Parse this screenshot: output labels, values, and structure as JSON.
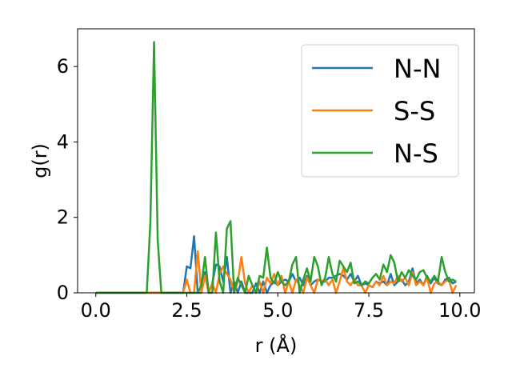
{
  "chart_data": {
    "type": "line",
    "xlabel": "r (Å)",
    "ylabel": "g(r)",
    "xlim": [
      -0.5,
      10.4
    ],
    "ylim": [
      0,
      7
    ],
    "xticks": [
      0.0,
      2.5,
      5.0,
      7.5,
      10.0
    ],
    "xtick_labels": [
      "0.0",
      "2.5",
      "5.0",
      "7.5",
      "10.0"
    ],
    "yticks": [
      0,
      2,
      4,
      6
    ],
    "ytick_labels": [
      "0",
      "2",
      "4",
      "6"
    ],
    "grid": false,
    "legend_position": "top-right",
    "series": [
      {
        "name": "N-N",
        "color": "#1f77b4",
        "x": [
          0.0,
          1.5,
          2.0,
          2.4,
          2.5,
          2.6,
          2.7,
          2.8,
          2.9,
          3.0,
          3.1,
          3.2,
          3.3,
          3.4,
          3.5,
          3.6,
          3.7,
          3.8,
          3.9,
          4.0,
          4.1,
          4.2,
          4.3,
          4.4,
          4.5,
          4.6,
          4.7,
          4.8,
          4.9,
          5.0,
          5.1,
          5.2,
          5.3,
          5.4,
          5.5,
          5.6,
          5.7,
          5.8,
          5.9,
          6.0,
          6.1,
          6.2,
          6.3,
          6.4,
          6.5,
          6.6,
          6.7,
          6.8,
          6.9,
          7.0,
          7.1,
          7.2,
          7.3,
          7.4,
          7.5,
          7.6,
          7.7,
          7.8,
          7.9,
          8.0,
          8.1,
          8.2,
          8.3,
          8.4,
          8.5,
          8.6,
          8.7,
          8.8,
          8.9,
          9.0,
          9.1,
          9.2,
          9.3,
          9.4,
          9.5,
          9.6,
          9.7,
          9.8,
          9.9
        ],
        "y": [
          0.0,
          0.0,
          0.0,
          0.0,
          0.7,
          0.65,
          1.5,
          0.0,
          0.0,
          0.55,
          0.0,
          0.25,
          0.75,
          0.7,
          0.3,
          0.95,
          0.0,
          0.3,
          0.0,
          0.3,
          0.0,
          0.0,
          0.0,
          0.25,
          0.0,
          0.3,
          0.0,
          0.2,
          0.3,
          0.2,
          0.3,
          0.35,
          0.3,
          0.5,
          0.3,
          0.4,
          0.2,
          0.45,
          0.2,
          0.3,
          0.35,
          0.3,
          0.3,
          0.4,
          0.4,
          0.45,
          0.5,
          0.45,
          0.35,
          0.5,
          0.3,
          0.45,
          0.2,
          0.25,
          0.2,
          0.15,
          0.3,
          0.25,
          0.3,
          0.2,
          0.5,
          0.2,
          0.3,
          0.35,
          0.2,
          0.3,
          0.65,
          0.25,
          0.35,
          0.2,
          0.45,
          0.25,
          0.4,
          0.25,
          0.2,
          0.35,
          0.4,
          0.25,
          0.3
        ]
      },
      {
        "name": "S-S",
        "color": "#ff7f0e",
        "x": [
          0.0,
          1.5,
          2.0,
          2.4,
          2.5,
          2.6,
          2.7,
          2.8,
          2.9,
          3.0,
          3.1,
          3.2,
          3.3,
          3.4,
          3.5,
          3.6,
          3.7,
          3.8,
          3.9,
          4.0,
          4.1,
          4.2,
          4.3,
          4.4,
          4.5,
          4.6,
          4.7,
          4.8,
          4.9,
          5.0,
          5.1,
          5.2,
          5.3,
          5.4,
          5.5,
          5.6,
          5.7,
          5.8,
          5.9,
          6.0,
          6.1,
          6.2,
          6.3,
          6.4,
          6.5,
          6.6,
          6.7,
          6.8,
          6.9,
          7.0,
          7.1,
          7.2,
          7.3,
          7.4,
          7.5,
          7.6,
          7.7,
          7.8,
          7.9,
          8.0,
          8.1,
          8.2,
          8.3,
          8.4,
          8.5,
          8.6,
          8.7,
          8.8,
          8.9,
          9.0,
          9.1,
          9.2,
          9.3,
          9.4,
          9.5,
          9.6,
          9.7,
          9.8,
          9.9
        ],
        "y": [
          0.0,
          0.0,
          0.0,
          0.0,
          0.35,
          0.0,
          0.0,
          1.1,
          0.0,
          0.45,
          0.0,
          0.25,
          0.0,
          0.5,
          0.7,
          0.5,
          0.35,
          0.0,
          0.3,
          0.95,
          0.25,
          0.0,
          0.2,
          0.0,
          0.3,
          0.0,
          0.4,
          0.25,
          0.5,
          0.2,
          0.45,
          0.0,
          0.3,
          0.0,
          0.35,
          0.2,
          0.0,
          0.4,
          0.2,
          0.0,
          0.35,
          0.3,
          0.35,
          0.2,
          0.35,
          0.0,
          0.3,
          0.65,
          0.3,
          0.2,
          0.35,
          0.2,
          0.2,
          0.0,
          0.2,
          0.15,
          0.3,
          0.2,
          0.45,
          0.2,
          0.3,
          0.25,
          0.45,
          0.3,
          0.4,
          0.2,
          0.55,
          0.2,
          0.3,
          0.2,
          0.4,
          0.0,
          0.25,
          0.3,
          0.2,
          0.3,
          0.35,
          0.0,
          0.2
        ]
      },
      {
        "name": "N-S",
        "color": "#2ca02c",
        "x": [
          0.0,
          1.3,
          1.4,
          1.5,
          1.6,
          1.7,
          1.8,
          1.9,
          2.0,
          2.4,
          2.5,
          2.6,
          2.7,
          2.8,
          2.9,
          3.0,
          3.1,
          3.2,
          3.3,
          3.4,
          3.5,
          3.6,
          3.7,
          3.8,
          3.9,
          4.0,
          4.1,
          4.2,
          4.3,
          4.4,
          4.5,
          4.6,
          4.7,
          4.8,
          4.9,
          5.0,
          5.1,
          5.2,
          5.3,
          5.4,
          5.5,
          5.6,
          5.7,
          5.8,
          5.9,
          6.0,
          6.1,
          6.2,
          6.3,
          6.4,
          6.5,
          6.6,
          6.7,
          6.8,
          6.9,
          7.0,
          7.1,
          7.2,
          7.3,
          7.4,
          7.5,
          7.6,
          7.7,
          7.8,
          7.9,
          8.0,
          8.1,
          8.2,
          8.3,
          8.4,
          8.5,
          8.6,
          8.7,
          8.8,
          8.9,
          9.0,
          9.1,
          9.2,
          9.3,
          9.4,
          9.5,
          9.6,
          9.7,
          9.8,
          9.9
        ],
        "y": [
          0.0,
          0.0,
          0.0,
          1.9,
          6.65,
          1.4,
          0.0,
          0.0,
          0.0,
          0.0,
          0.0,
          0.0,
          0.0,
          0.0,
          0.2,
          0.95,
          0.0,
          0.0,
          1.6,
          0.3,
          0.0,
          1.7,
          1.9,
          0.0,
          0.4,
          0.2,
          0.0,
          0.45,
          0.2,
          0.0,
          0.45,
          0.4,
          1.2,
          0.4,
          0.25,
          0.55,
          0.3,
          0.2,
          0.3,
          0.75,
          0.95,
          0.0,
          0.35,
          0.65,
          0.3,
          0.95,
          0.7,
          0.2,
          0.4,
          0.95,
          0.5,
          0.3,
          0.85,
          0.7,
          0.55,
          0.8,
          0.25,
          0.3,
          0.2,
          0.3,
          0.25,
          0.4,
          0.5,
          0.35,
          0.75,
          0.55,
          1.0,
          0.8,
          0.3,
          0.55,
          0.4,
          0.6,
          0.45,
          0.35,
          0.55,
          0.6,
          0.4,
          0.3,
          0.45,
          0.3,
          0.95,
          0.55,
          0.3,
          0.35,
          0.3
        ]
      }
    ]
  }
}
